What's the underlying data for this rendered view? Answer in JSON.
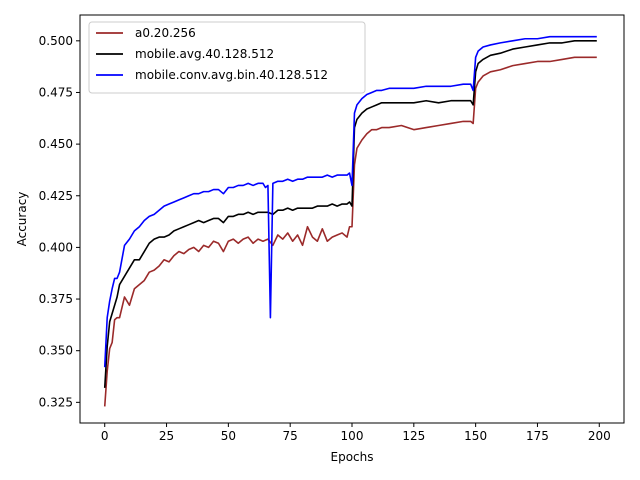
{
  "chart_data": {
    "type": "line",
    "xlabel": "Epochs",
    "ylabel": "Accuracy",
    "xlim": [
      -10,
      210
    ],
    "ylim": [
      0.315,
      0.5125
    ],
    "xticks": [
      "0",
      "25",
      "50",
      "75",
      "100",
      "125",
      "150",
      "175",
      "200"
    ],
    "yticks": [
      "0.325",
      "0.350",
      "0.375",
      "0.400",
      "0.425",
      "0.450",
      "0.475",
      "0.500"
    ],
    "grid": false,
    "legend_position": "upper-left",
    "series": [
      {
        "name": "a0.20.256",
        "color": "#9b2a2a",
        "x": [
          0,
          1,
          2,
          3,
          4,
          5,
          6,
          8,
          10,
          12,
          14,
          16,
          18,
          20,
          22,
          24,
          26,
          28,
          30,
          32,
          34,
          36,
          38,
          40,
          42,
          44,
          46,
          48,
          50,
          52,
          54,
          56,
          58,
          60,
          62,
          64,
          66,
          68,
          70,
          72,
          74,
          76,
          78,
          80,
          82,
          84,
          86,
          88,
          90,
          92,
          94,
          96,
          98,
          99,
          100,
          101,
          102,
          104,
          106,
          108,
          110,
          112,
          115,
          120,
          125,
          130,
          135,
          140,
          145,
          148,
          149,
          150,
          151,
          153,
          156,
          160,
          165,
          170,
          175,
          180,
          185,
          190,
          195,
          199
        ],
        "y": [
          0.323,
          0.34,
          0.351,
          0.354,
          0.365,
          0.366,
          0.366,
          0.376,
          0.372,
          0.38,
          0.382,
          0.384,
          0.388,
          0.389,
          0.391,
          0.394,
          0.393,
          0.396,
          0.398,
          0.397,
          0.399,
          0.4,
          0.398,
          0.401,
          0.4,
          0.403,
          0.402,
          0.398,
          0.403,
          0.404,
          0.402,
          0.404,
          0.405,
          0.402,
          0.404,
          0.403,
          0.404,
          0.401,
          0.406,
          0.404,
          0.407,
          0.403,
          0.406,
          0.401,
          0.41,
          0.405,
          0.403,
          0.409,
          0.403,
          0.405,
          0.406,
          0.407,
          0.405,
          0.41,
          0.41,
          0.44,
          0.448,
          0.452,
          0.455,
          0.457,
          0.457,
          0.458,
          0.458,
          0.459,
          0.457,
          0.458,
          0.459,
          0.46,
          0.461,
          0.461,
          0.46,
          0.477,
          0.48,
          0.483,
          0.485,
          0.486,
          0.488,
          0.489,
          0.49,
          0.49,
          0.491,
          0.492,
          0.492,
          0.492
        ]
      },
      {
        "name": "mobile.avg.40.128.512",
        "color": "#000000",
        "x": [
          0,
          1,
          2,
          3,
          4,
          5,
          6,
          8,
          10,
          12,
          14,
          16,
          18,
          20,
          22,
          24,
          26,
          28,
          30,
          32,
          34,
          36,
          38,
          40,
          42,
          44,
          46,
          48,
          50,
          52,
          54,
          56,
          58,
          60,
          62,
          64,
          66,
          68,
          70,
          72,
          74,
          76,
          78,
          80,
          82,
          84,
          86,
          88,
          90,
          92,
          94,
          96,
          98,
          99,
          100,
          101,
          102,
          104,
          106,
          108,
          110,
          112,
          115,
          120,
          125,
          130,
          135,
          140,
          145,
          148,
          149,
          150,
          151,
          153,
          156,
          160,
          165,
          170,
          175,
          180,
          185,
          190,
          195,
          199
        ],
        "y": [
          0.332,
          0.352,
          0.364,
          0.368,
          0.372,
          0.376,
          0.382,
          0.386,
          0.39,
          0.394,
          0.394,
          0.398,
          0.402,
          0.404,
          0.405,
          0.405,
          0.406,
          0.408,
          0.409,
          0.41,
          0.411,
          0.412,
          0.413,
          0.412,
          0.413,
          0.414,
          0.414,
          0.412,
          0.415,
          0.415,
          0.416,
          0.416,
          0.417,
          0.416,
          0.417,
          0.417,
          0.417,
          0.416,
          0.418,
          0.418,
          0.419,
          0.418,
          0.419,
          0.419,
          0.419,
          0.419,
          0.42,
          0.42,
          0.42,
          0.421,
          0.42,
          0.421,
          0.421,
          0.422,
          0.42,
          0.458,
          0.462,
          0.465,
          0.467,
          0.468,
          0.469,
          0.47,
          0.47,
          0.47,
          0.47,
          0.471,
          0.47,
          0.471,
          0.471,
          0.471,
          0.469,
          0.485,
          0.489,
          0.491,
          0.493,
          0.494,
          0.496,
          0.497,
          0.498,
          0.499,
          0.499,
          0.5,
          0.5,
          0.5
        ]
      },
      {
        "name": "mobile.conv.avg.bin.40.128.512",
        "color": "#0000ff",
        "x": [
          0,
          1,
          2,
          3,
          4,
          5,
          6,
          8,
          10,
          12,
          14,
          16,
          18,
          20,
          22,
          24,
          26,
          28,
          30,
          32,
          34,
          36,
          38,
          40,
          42,
          44,
          46,
          48,
          50,
          52,
          54,
          56,
          58,
          60,
          62,
          64,
          65,
          66,
          67,
          68,
          70,
          72,
          74,
          76,
          78,
          80,
          82,
          84,
          86,
          88,
          90,
          92,
          94,
          96,
          98,
          99,
          100,
          101,
          102,
          104,
          106,
          108,
          110,
          112,
          115,
          120,
          125,
          130,
          135,
          140,
          145,
          148,
          149,
          150,
          151,
          153,
          156,
          160,
          165,
          170,
          175,
          180,
          185,
          190,
          195,
          199
        ],
        "y": [
          0.342,
          0.366,
          0.374,
          0.38,
          0.385,
          0.385,
          0.388,
          0.401,
          0.404,
          0.408,
          0.41,
          0.413,
          0.415,
          0.416,
          0.418,
          0.42,
          0.421,
          0.422,
          0.423,
          0.424,
          0.425,
          0.426,
          0.426,
          0.427,
          0.427,
          0.428,
          0.428,
          0.426,
          0.429,
          0.429,
          0.43,
          0.43,
          0.431,
          0.43,
          0.431,
          0.431,
          0.429,
          0.43,
          0.366,
          0.431,
          0.432,
          0.432,
          0.433,
          0.432,
          0.433,
          0.433,
          0.434,
          0.434,
          0.434,
          0.434,
          0.435,
          0.434,
          0.435,
          0.435,
          0.435,
          0.436,
          0.43,
          0.465,
          0.469,
          0.472,
          0.474,
          0.475,
          0.476,
          0.476,
          0.477,
          0.477,
          0.477,
          0.478,
          0.478,
          0.478,
          0.479,
          0.479,
          0.476,
          0.492,
          0.495,
          0.497,
          0.498,
          0.499,
          0.5,
          0.501,
          0.501,
          0.502,
          0.502,
          0.502,
          0.502,
          0.502
        ]
      }
    ]
  }
}
